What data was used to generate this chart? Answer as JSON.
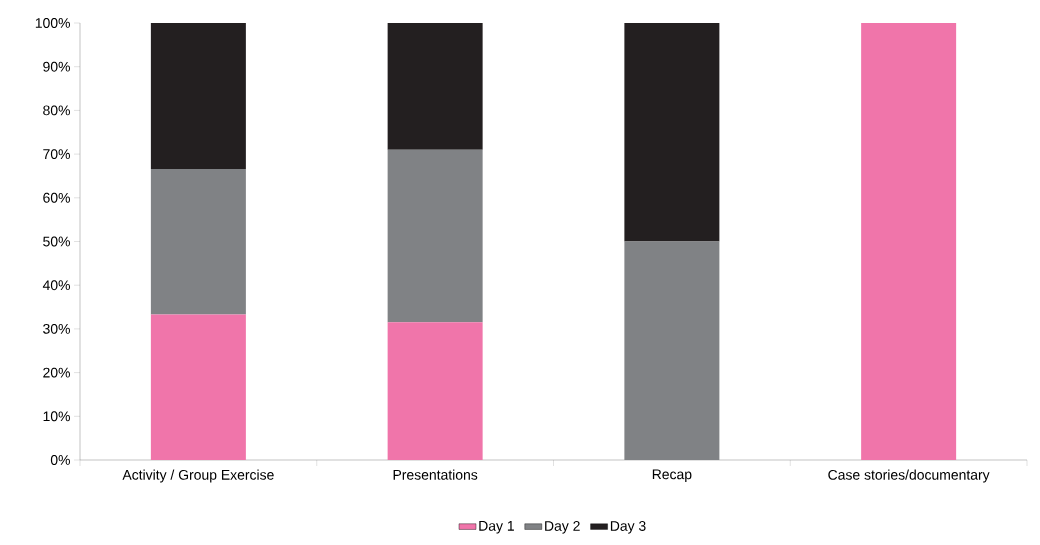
{
  "chart_data": {
    "type": "bar",
    "stacked": true,
    "categories": [
      "Activity / Group Exercise",
      "Presentations",
      "Recap",
      "Case stories/documentary"
    ],
    "series": [
      {
        "name": "Day 1",
        "color": "#f075aa",
        "values": [
          33.3,
          31.5,
          0,
          100
        ]
      },
      {
        "name": "Day 2",
        "color": "#808285",
        "values": [
          33.3,
          39.5,
          50,
          0
        ]
      },
      {
        "name": "Day 3",
        "color": "#231f20",
        "values": [
          33.4,
          29,
          50,
          0
        ]
      }
    ],
    "ylim": [
      0,
      100
    ],
    "yticks": [
      {
        "value": 0,
        "label": "0%"
      },
      {
        "value": 10,
        "label": "10%"
      },
      {
        "value": 20,
        "label": "20%"
      },
      {
        "value": 30,
        "label": "30%"
      },
      {
        "value": 40,
        "label": "40%"
      },
      {
        "value": 50,
        "label": "50%"
      },
      {
        "value": 60,
        "label": "60%"
      },
      {
        "value": 70,
        "label": "70%"
      },
      {
        "value": 80,
        "label": "80%"
      },
      {
        "value": 90,
        "label": "90%"
      },
      {
        "value": 100,
        "label": "100%"
      }
    ],
    "grid": false,
    "legend": "bottom"
  }
}
